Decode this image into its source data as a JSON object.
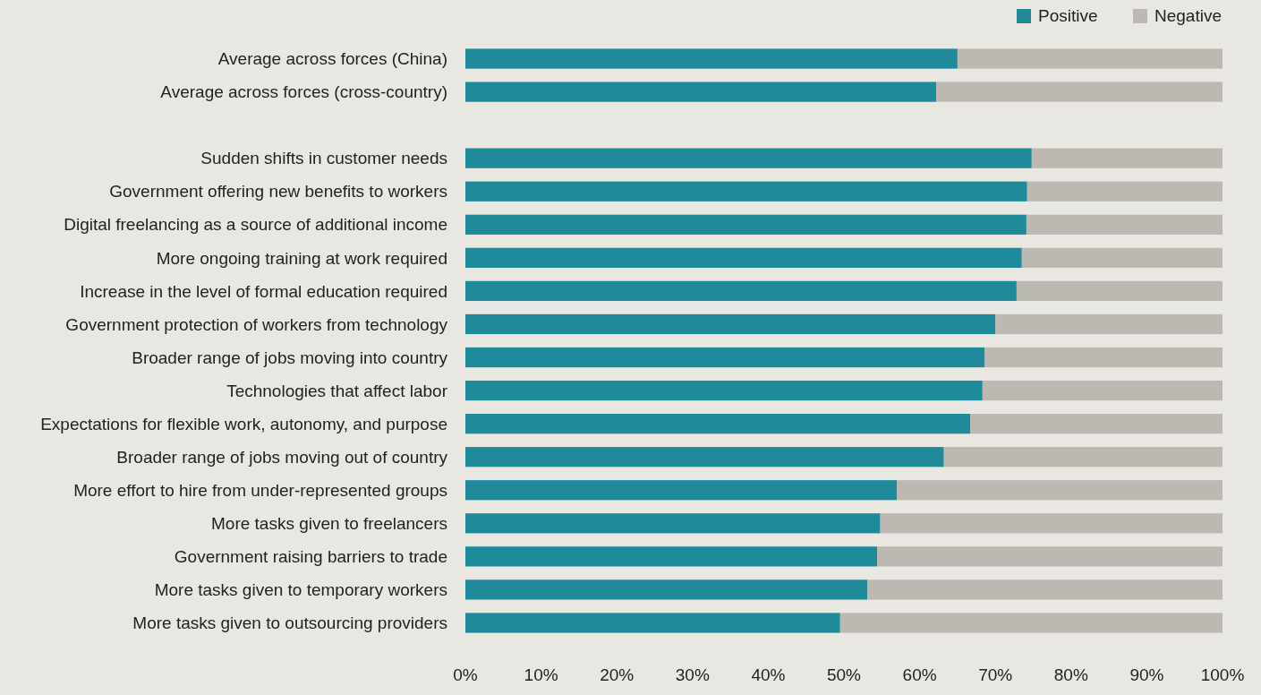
{
  "chart_data": {
    "type": "bar",
    "orientation": "horizontal",
    "stacked": true,
    "legend": "top right",
    "categories": [
      "Average across forces (China)",
      "Average across forces (cross-country)",
      null,
      "Sudden shifts in customer needs",
      "Government offering new benefits to workers",
      "Digital freelancing as a source of additional income",
      "More ongoing training at work required",
      "Increase in the level of formal education required",
      "Government protection of workers from technology",
      "Broader range of jobs moving into country",
      "Technologies that affect labor",
      "Expectations for flexible work, autonomy, and purpose",
      "Broader range of jobs moving out of country",
      "More effort to hire from under-represented groups",
      "More tasks given to freelancers",
      "Government raising barriers to trade",
      "More tasks given to temporary workers",
      "More tasks given to outsourcing providers"
    ],
    "series": [
      {
        "name": "Positive",
        "color": "#1f8a99",
        "values": [
          65.0,
          62.2,
          null,
          74.8,
          74.2,
          74.1,
          73.5,
          72.8,
          70.0,
          68.6,
          68.3,
          66.7,
          63.2,
          57.0,
          54.8,
          54.4,
          53.1,
          49.5
        ]
      },
      {
        "name": "Negative",
        "color": "#bdb8b1",
        "values": [
          35.0,
          37.8,
          null,
          25.2,
          25.8,
          25.9,
          26.5,
          27.2,
          30.0,
          31.4,
          31.7,
          33.3,
          36.8,
          43.0,
          45.2,
          45.6,
          46.9,
          50.5
        ]
      }
    ],
    "xlim": [
      0,
      100
    ],
    "xticks": [
      {
        "value": 0,
        "label": "0%"
      },
      {
        "value": 10,
        "label": "10%"
      },
      {
        "value": 20,
        "label": "20%"
      },
      {
        "value": 30,
        "label": "30%"
      },
      {
        "value": 40,
        "label": "40%"
      },
      {
        "value": 50,
        "label": "50%"
      },
      {
        "value": 60,
        "label": "60%"
      },
      {
        "value": 70,
        "label": "70%"
      },
      {
        "value": 80,
        "label": "80%"
      },
      {
        "value": 90,
        "label": "90%"
      },
      {
        "value": 100,
        "label": "100%"
      }
    ]
  }
}
